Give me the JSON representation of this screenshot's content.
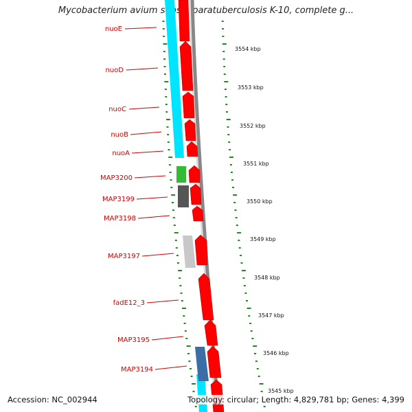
{
  "title": "Mycobacterium avium subsp. paratuberculosis K-10, complete g...",
  "accession": "Accession: NC_002944",
  "topology": "Topology: circular; Length: 4,829,781 bp; Genes: 4,399",
  "gene_labels": [
    "nuoE",
    "nuoD",
    "nuoC",
    "nuoB",
    "nuoA",
    "MAP3200",
    "MAP3199",
    "MAP3198",
    "MAP3197",
    "fadE12_3",
    "MAP3195",
    "MAP3194"
  ],
  "kbp_labels": [
    "3554 kbp",
    "3553 kbp",
    "3552 kbp",
    "3551 kbp",
    "3550 kbp",
    "3549 kbp",
    "3548 kbp",
    "3547 kbp",
    "3546 kbp",
    "3545 kbp"
  ],
  "colors": {
    "cds_forward": "#ff0000",
    "cyan_feature": "#00e5ff",
    "green_feature": "#33bb33",
    "dark_gray_feature": "#555555",
    "light_gray_feature": "#c8c8c8",
    "blue_feature": "#3a6ea5",
    "backbone": "#888888",
    "tick": "#1f8a1f",
    "label_red": "#cc0000"
  }
}
